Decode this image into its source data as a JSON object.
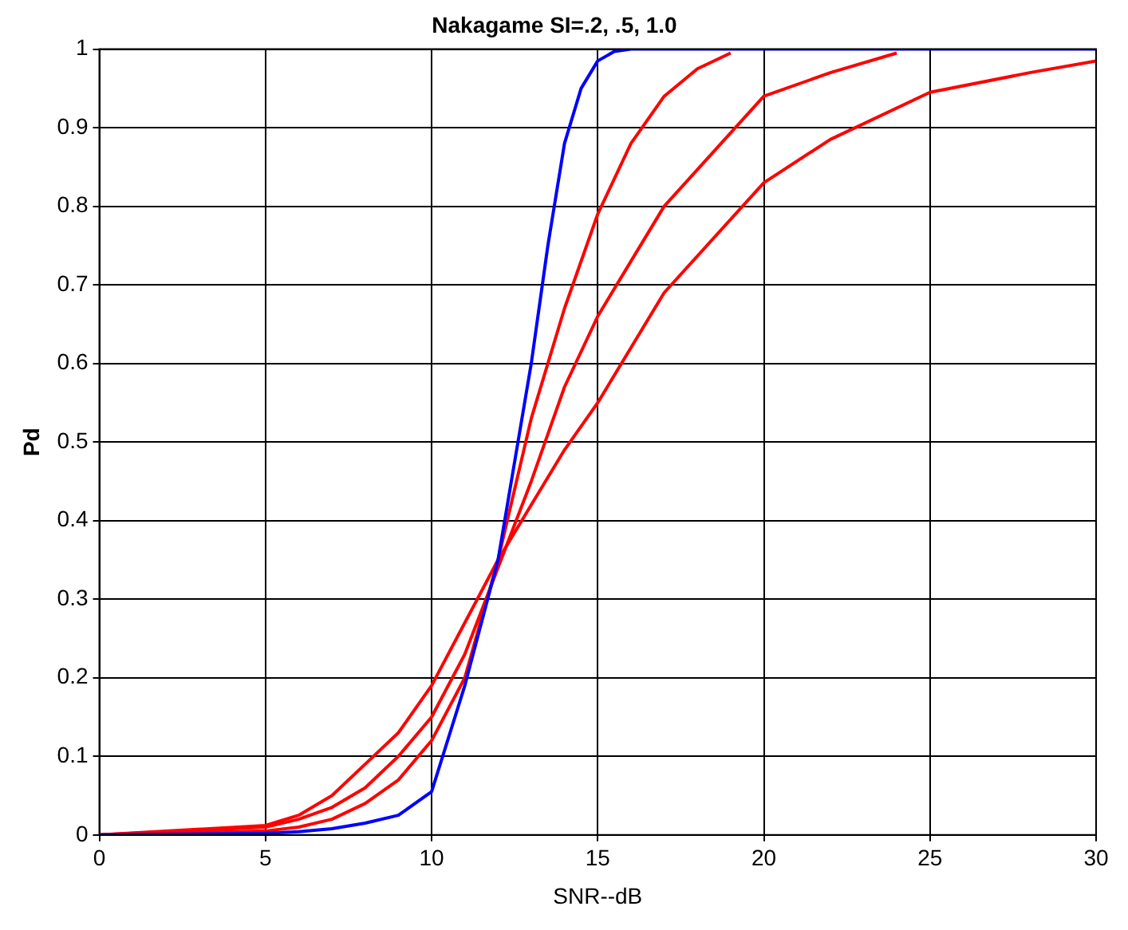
{
  "chart_data": {
    "type": "line",
    "title": "Nakagame SI=.2, .5, 1.0",
    "xlabel": "SNR--dB",
    "ylabel": "Pd",
    "xlim": [
      0,
      30
    ],
    "ylim": [
      0,
      1
    ],
    "xticks": [
      0,
      5,
      10,
      15,
      20,
      25,
      30
    ],
    "yticks": [
      0,
      0.1,
      0.2,
      0.3,
      0.4,
      0.5,
      0.6,
      0.7,
      0.8,
      0.9,
      1
    ],
    "grid": true,
    "legend": false,
    "marker": "none",
    "line_style": "solid",
    "series": [
      {
        "color": "#0000ff",
        "x": [
          0,
          5,
          6,
          7,
          8,
          9,
          10,
          11,
          12,
          13,
          13.5,
          14,
          14.5,
          15,
          15.5,
          16,
          20,
          25,
          30
        ],
        "values": [
          0,
          0.002,
          0.004,
          0.008,
          0.015,
          0.025,
          0.055,
          0.19,
          0.35,
          0.6,
          0.75,
          0.88,
          0.95,
          0.985,
          0.997,
          1,
          1,
          1,
          1
        ]
      },
      {
        "color": "#ff0000",
        "x": [
          0,
          5,
          6,
          7,
          8,
          9,
          10,
          11,
          12,
          13,
          14,
          15,
          16,
          17,
          18,
          19
        ],
        "values": [
          0,
          0.005,
          0.01,
          0.02,
          0.04,
          0.07,
          0.12,
          0.2,
          0.35,
          0.53,
          0.67,
          0.79,
          0.88,
          0.94,
          0.975,
          0.995
        ]
      },
      {
        "color": "#ff0000",
        "x": [
          0,
          5,
          6,
          7,
          8,
          9,
          10,
          11,
          12,
          13,
          14,
          15,
          17,
          20,
          22,
          24
        ],
        "values": [
          0,
          0.01,
          0.02,
          0.035,
          0.06,
          0.1,
          0.15,
          0.23,
          0.34,
          0.45,
          0.57,
          0.66,
          0.8,
          0.94,
          0.97,
          0.995
        ]
      },
      {
        "color": "#ff0000",
        "x": [
          0,
          5,
          6,
          7,
          8,
          9,
          10,
          11,
          12,
          13,
          14,
          15,
          17,
          20,
          22,
          25,
          28,
          30
        ],
        "values": [
          0,
          0.012,
          0.025,
          0.05,
          0.09,
          0.13,
          0.19,
          0.27,
          0.35,
          0.42,
          0.49,
          0.55,
          0.69,
          0.83,
          0.885,
          0.945,
          0.97,
          0.985
        ]
      }
    ]
  }
}
